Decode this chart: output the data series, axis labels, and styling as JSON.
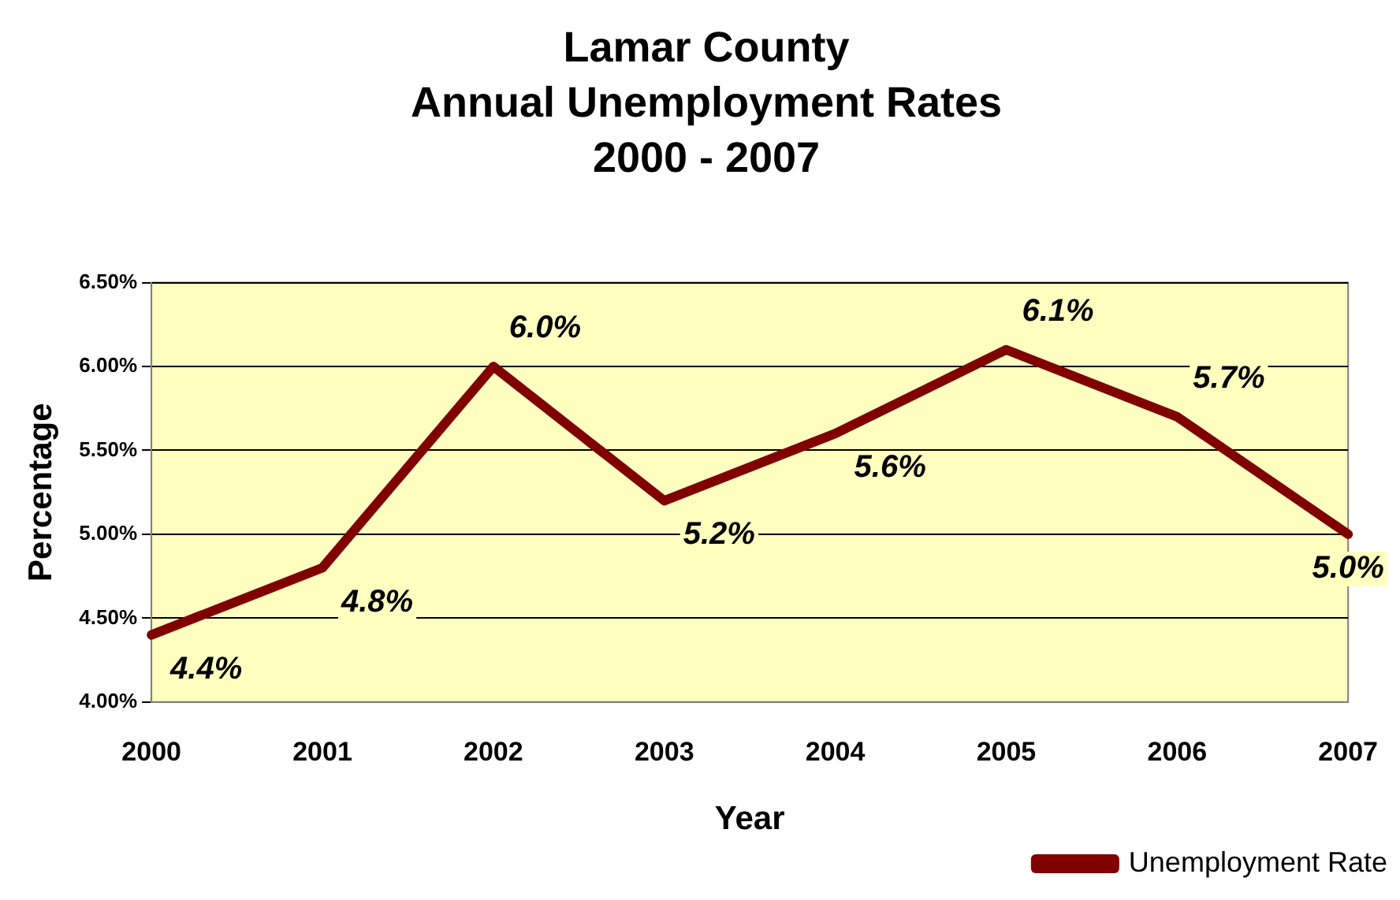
{
  "chart_data": {
    "type": "line",
    "title": "Lamar County\nAnnual Unemployment Rates\n2000 - 2007",
    "xlabel": "Year",
    "ylabel": "Percentage",
    "categories": [
      "2000",
      "2001",
      "2002",
      "2003",
      "2004",
      "2005",
      "2006",
      "2007"
    ],
    "series": [
      {
        "name": "Unemployment Rate",
        "color": "#800000",
        "values": [
          4.4,
          4.8,
          6.0,
          5.2,
          5.6,
          6.1,
          5.7,
          5.0
        ],
        "value_labels": [
          "4.4%",
          "4.8%",
          "6.0%",
          "5.2%",
          "5.6%",
          "6.1%",
          "5.7%",
          "5.0%"
        ]
      }
    ],
    "ylim": [
      4.0,
      6.5
    ],
    "yticks": [
      {
        "value": 4.0,
        "label": "4.00%"
      },
      {
        "value": 4.5,
        "label": "4.50%"
      },
      {
        "value": 5.0,
        "label": "5.00%"
      },
      {
        "value": 5.5,
        "label": "5.50%"
      },
      {
        "value": 6.0,
        "label": "6.00%"
      },
      {
        "value": 6.5,
        "label": "6.50%"
      }
    ],
    "grid": "y",
    "legend": "bottom right",
    "marker": "none",
    "line_style": "solid"
  }
}
